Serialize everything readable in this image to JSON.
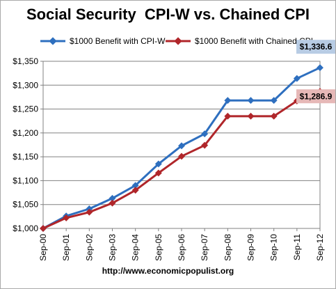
{
  "chart_data": {
    "type": "line",
    "title": "Social Security  CPI-W vs. Chained CPI",
    "categories": [
      "Sep-00",
      "Sep-01",
      "Sep-02",
      "Sep-03",
      "Sep-04",
      "Sep-05",
      "Sep-06",
      "Sep-07",
      "Sep-08",
      "Sep-09",
      "Sep-10",
      "Sep-11",
      "Sep-12"
    ],
    "series": [
      {
        "name": "$1000 Benefit with CPI-W",
        "color": "#2e6fbf",
        "values": [
          1000,
          1026,
          1041,
          1063,
          1090,
          1135,
          1173,
          1198,
          1268,
          1268,
          1268,
          1314,
          1336.6
        ]
      },
      {
        "name": "$1000 Benefit with Chained CPI",
        "color": "#b0262a",
        "values": [
          1000,
          1022,
          1034,
          1053,
          1080,
          1116,
          1151,
          1174,
          1235,
          1235,
          1235,
          1267,
          1286.9
        ]
      }
    ],
    "ylim": [
      1000,
      1350
    ],
    "yticks": [
      1000,
      1050,
      1100,
      1150,
      1200,
      1250,
      1300,
      1350
    ],
    "ytick_labels": [
      "$1,000",
      "$1,050",
      "$1,100",
      "$1,150",
      "$1,200",
      "$1,250",
      "$1,300",
      "$1,350"
    ],
    "grid": true,
    "legend": "top",
    "annotations": [
      {
        "text": "$1,336.6",
        "series": 0,
        "background": "#b8cce4"
      },
      {
        "text": "$1,286.9",
        "series": 1,
        "background": "#e6b8b7"
      }
    ]
  },
  "footer": "http://www.economicpopulist.org"
}
